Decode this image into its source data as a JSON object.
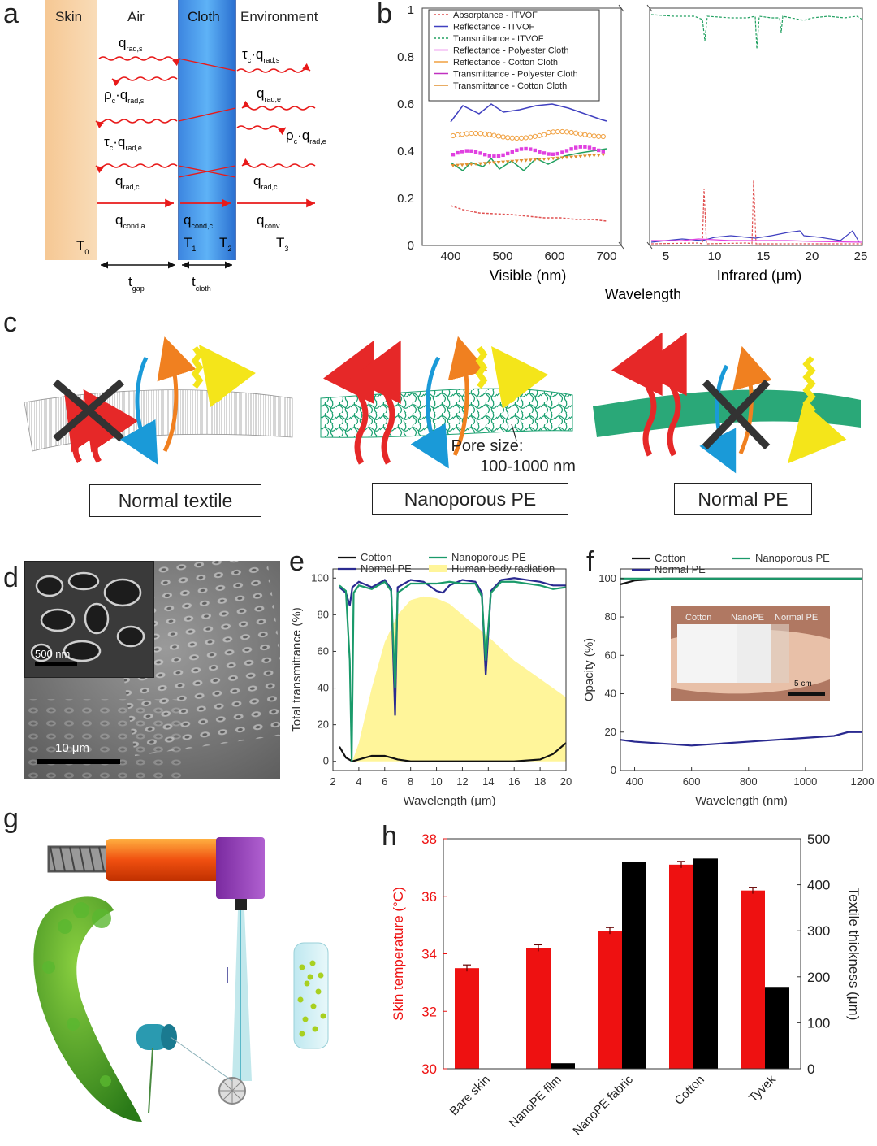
{
  "panel_letters": {
    "a": "a",
    "b": "b",
    "c": "c",
    "d": "d",
    "e": "e",
    "f": "f",
    "g": "g",
    "h": "h"
  },
  "panel_a": {
    "regions": {
      "skin": "Skin",
      "air": "Air",
      "cloth": "Cloth",
      "environment": "Environment"
    },
    "temps": {
      "t0": "T",
      "t0s": "0",
      "t1": "T",
      "t1s": "1",
      "t2": "T",
      "t2s": "2",
      "t3": "T",
      "t3s": "3"
    },
    "flux_left": [
      {
        "main": "q",
        "sub": "rad,s"
      },
      {
        "main": "ρ",
        "mid": "·q",
        "sub0": "c",
        "sub": "rad,s"
      },
      {
        "main": "τ",
        "mid": "·q",
        "sub0": "c",
        "sub": "rad,e"
      },
      {
        "main": "q",
        "sub": "rad,c"
      },
      {
        "main": "q",
        "sub": "cond,a"
      }
    ],
    "flux_right": [
      {
        "main": "τ",
        "mid": "·q",
        "sub0": "c",
        "sub": "rad,s"
      },
      {
        "main": "q",
        "sub": "rad,e"
      },
      {
        "main": "ρ",
        "mid": "·q",
        "sub0": "c",
        "sub": "rad,e"
      },
      {
        "main": "q",
        "sub": "rad,c"
      },
      {
        "main": "q",
        "sub": "conv"
      }
    ],
    "flux_cloth": {
      "main": "q",
      "sub": "cond,c"
    },
    "dims": {
      "gap": "t",
      "gap_sub": "gap",
      "cloth": "t",
      "cloth_sub": "cloth"
    }
  },
  "panel_b": {
    "legend": [
      {
        "label": "Absorptance - ITVOF",
        "color": "#e05050"
      },
      {
        "label": "Reflectance - ITVOF",
        "color": "#4040c0"
      },
      {
        "label": "Transmittance - ITVOF",
        "color": "#20a060"
      },
      {
        "label": "Reflectance - Polyester Cloth",
        "color": "#e040e0"
      },
      {
        "label": "Reflectance - Cotton Cloth",
        "color": "#f0a040"
      },
      {
        "label": "Transmittance - Polyester Cloth",
        "color": "#c030c0"
      },
      {
        "label": "Transmittance - Cotton Cloth",
        "color": "#e09030"
      }
    ],
    "yticks": [
      "0",
      "0.2",
      "0.4",
      "0.6",
      "0.8",
      "1"
    ],
    "xticks_vis": [
      "400",
      "500",
      "600",
      "700"
    ],
    "xticks_ir": [
      "5",
      "10",
      "15",
      "20",
      "25"
    ],
    "xlabel_vis": "Visible (nm)",
    "xlabel_ir": "Infrared (μm)",
    "xlabel": "Wavelength"
  },
  "panel_c": {
    "labels": [
      "Normal textile",
      "Nanoporous PE",
      "Normal PE"
    ],
    "pore_label_1": "Pore size:",
    "pore_label_2": "100-1000 nm"
  },
  "panel_d": {
    "inset_scale": "500 nm",
    "main_scale": "10 μm"
  },
  "chart_data": [
    {
      "type": "line",
      "title": "e",
      "xlabel": "Wavelength (μm)",
      "ylabel": "Total transmittance (%)",
      "xlim": [
        2,
        20
      ],
      "ylim": [
        -5,
        105
      ],
      "xticks": [
        2,
        4,
        6,
        8,
        10,
        12,
        14,
        16,
        18,
        20
      ],
      "yticks": [
        0,
        20,
        40,
        60,
        80,
        100
      ],
      "legend": [
        "Cotton",
        "Normal PE",
        "Nanoporous PE",
        "Human body radiation"
      ],
      "series": [
        {
          "name": "Cotton",
          "color": "#111111",
          "x": [
            2.5,
            3,
            3.5,
            4,
            5,
            6,
            7,
            8,
            10,
            12,
            14,
            16,
            18,
            19,
            20
          ],
          "y": [
            8,
            2,
            0,
            1,
            3,
            3,
            1,
            0,
            0,
            0,
            0,
            0,
            1,
            4,
            10
          ]
        },
        {
          "name": "Normal PE",
          "color": "#2a2a90",
          "x": [
            2.5,
            3,
            3.3,
            3.5,
            4,
            5,
            6,
            6.5,
            6.8,
            7,
            8,
            9,
            10,
            10.5,
            11,
            12,
            13,
            13.5,
            13.8,
            14.2,
            15,
            16,
            17,
            18,
            19,
            20
          ],
          "y": [
            95,
            92,
            85,
            95,
            98,
            95,
            99,
            94,
            25,
            95,
            99,
            98,
            93,
            92,
            96,
            99,
            98,
            92,
            47,
            93,
            99,
            100,
            99,
            98,
            96,
            96
          ]
        },
        {
          "name": "Nanoporous PE",
          "color": "#1a9a6a",
          "x": [
            2.5,
            3,
            3.3,
            3.45,
            3.6,
            4,
            5,
            6,
            6.5,
            6.8,
            7,
            8,
            9,
            10,
            11,
            12,
            13,
            13.5,
            13.8,
            14.2,
            15,
            16,
            17,
            18,
            19,
            20
          ],
          "y": [
            96,
            93,
            55,
            0,
            92,
            96,
            94,
            98,
            93,
            40,
            92,
            97,
            97,
            97,
            98,
            97,
            97,
            90,
            55,
            92,
            98,
            98,
            97,
            96,
            94,
            95
          ]
        },
        {
          "name": "Human body radiation",
          "color": "#fff59a",
          "x": [
            3.5,
            4,
            5,
            6,
            7,
            8,
            9,
            10,
            11,
            12,
            14,
            16,
            18,
            20
          ],
          "y": [
            0,
            10,
            40,
            65,
            80,
            88,
            90,
            89,
            86,
            80,
            68,
            55,
            45,
            35
          ]
        }
      ]
    },
    {
      "type": "line",
      "title": "f",
      "xlabel": "Wavelength (nm)",
      "ylabel": "Opacity (%)",
      "xlim": [
        350,
        1200
      ],
      "ylim": [
        0,
        105
      ],
      "xticks": [
        400,
        600,
        800,
        1000,
        1200
      ],
      "yticks": [
        0,
        20,
        40,
        60,
        80,
        100
      ],
      "legend": [
        "Cotton",
        "Normal PE",
        "Nanoporous PE"
      ],
      "series": [
        {
          "name": "Cotton",
          "color": "#111111",
          "x": [
            350,
            400,
            500,
            600,
            800,
            1000,
            1200
          ],
          "y": [
            97,
            99,
            100,
            100,
            100,
            100,
            100
          ]
        },
        {
          "name": "Normal PE",
          "color": "#2a2a90",
          "x": [
            350,
            400,
            500,
            600,
            700,
            800,
            900,
            1000,
            1100,
            1150,
            1200
          ],
          "y": [
            16,
            15,
            14,
            13,
            14,
            15,
            16,
            17,
            18,
            20,
            20
          ]
        },
        {
          "name": "Nanoporous PE",
          "color": "#1a9a6a",
          "x": [
            350,
            400,
            600,
            800,
            1000,
            1200
          ],
          "y": [
            100,
            100,
            100,
            100,
            100,
            100
          ]
        }
      ],
      "inset_labels": [
        "Cotton",
        "NanoPE",
        "Normal PE"
      ],
      "inset_scale": "5 cm"
    },
    {
      "type": "bar",
      "title": "h",
      "categories": [
        "Bare skin",
        "NanoPE film",
        "NanoPE fabric",
        "Cotton",
        "Tyvek"
      ],
      "ylabel": "Skin temperature (°C)",
      "y2label": "Textile thickness (μm)",
      "ylim": [
        30,
        38
      ],
      "y2lim": [
        0,
        500
      ],
      "yticks": [
        30,
        32,
        34,
        36,
        38
      ],
      "y2ticks": [
        0,
        100,
        200,
        300,
        400,
        500
      ],
      "series": [
        {
          "name": "Skin temperature",
          "color": "#ee1111",
          "axis": "left",
          "values": [
            33.5,
            34.2,
            34.8,
            37.1,
            36.2
          ]
        },
        {
          "name": "Textile thickness",
          "color": "#000000",
          "axis": "right",
          "values": [
            0,
            12,
            450,
            457,
            178
          ]
        }
      ]
    }
  ]
}
